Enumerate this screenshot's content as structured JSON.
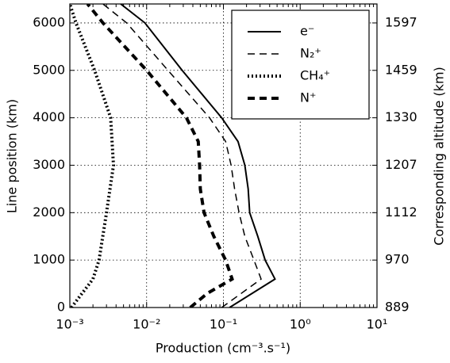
{
  "chart_data": {
    "type": "line",
    "xlabel": "Production  (cm⁻³.s⁻¹)",
    "ylabel": "Line position (km)",
    "y2label": "Corresponding altitude (km)",
    "xscale": "log",
    "xlim": [
      0.001,
      10
    ],
    "xticks": [
      {
        "value": 0.001,
        "label": "10⁻³"
      },
      {
        "value": 0.01,
        "label": "10⁻²"
      },
      {
        "value": 0.1,
        "label": "10⁻¹"
      },
      {
        "value": 1,
        "label": "10⁰"
      },
      {
        "value": 10,
        "label": "10¹"
      }
    ],
    "ylim": [
      0,
      6400
    ],
    "yticks": [
      0,
      1000,
      2000,
      3000,
      4000,
      5000,
      6000
    ],
    "y2ticks": [
      889,
      970,
      1112,
      1207,
      1330,
      1459,
      1597
    ],
    "grid": true,
    "legend": "upper right",
    "series": [
      {
        "name": "e⁻",
        "color": "#000000",
        "style": "solid",
        "x": [
          0.12,
          0.47,
          0.35,
          0.28,
          0.22,
          0.21,
          0.19,
          0.155,
          0.095,
          0.029,
          0.0095,
          0.0046
        ],
        "y": [
          0,
          600,
          1000,
          1500,
          2000,
          2500,
          3000,
          3500,
          4000,
          5000,
          6000,
          6400
        ]
      },
      {
        "name": "N₂⁺",
        "color": "#000000",
        "style": "dashed",
        "x": [
          0.095,
          0.31,
          0.25,
          0.19,
          0.16,
          0.14,
          0.126,
          0.107,
          0.066,
          0.019,
          0.0055,
          0.0027
        ],
        "y": [
          0,
          600,
          1000,
          1500,
          2000,
          2500,
          3000,
          3500,
          4000,
          5000,
          6000,
          6400
        ]
      },
      {
        "name": "CH₄⁺",
        "color": "#000000",
        "style": "dotted",
        "x": [
          0.00105,
          0.0013,
          0.002,
          0.0024,
          0.003,
          0.0037,
          0.0034,
          0.0021,
          0.0012,
          0.001
        ],
        "y": [
          0,
          200,
          600,
          1000,
          2000,
          3000,
          4000,
          5000,
          6000,
          6400
        ]
      },
      {
        "name": "N⁺",
        "color": "#000000",
        "style": "thickdash",
        "x": [
          0.037,
          0.062,
          0.13,
          0.107,
          0.075,
          0.056,
          0.05,
          0.049,
          0.047,
          0.033,
          0.01,
          0.0027,
          0.0017
        ],
        "y": [
          0,
          300,
          600,
          1000,
          1500,
          2000,
          2500,
          3000,
          3500,
          4000,
          5000,
          6000,
          6400
        ]
      }
    ]
  }
}
